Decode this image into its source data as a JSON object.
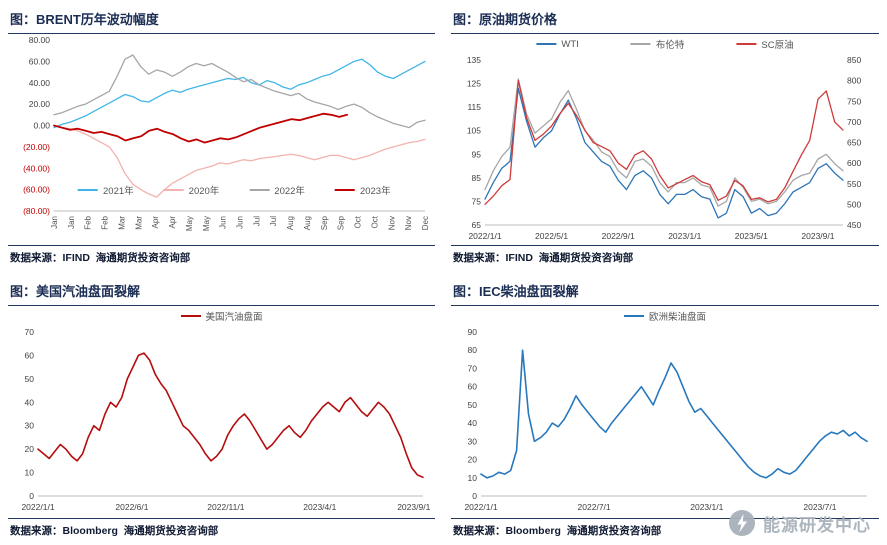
{
  "watermark": {
    "text": "能源研发中心",
    "icon": "lightning-icon",
    "color": "#a8b2ba"
  },
  "panels": [
    {
      "title": "图：BRENT历年波动幅度",
      "source": "数据来源：IFIND  海通期货投资咨询部"
    },
    {
      "title": "图：原油期货价格",
      "source": "数据来源：IFIND  海通期货投资咨询部"
    },
    {
      "title": "图：美国汽油盘面裂解",
      "source": "数据来源：Bloomberg  海通期货投资咨询部"
    },
    {
      "title": "图：IEC柴油盘面裂解",
      "source": "数据来源：Bloomberg  海通期货投资咨询部"
    }
  ],
  "chart_data": [
    {
      "type": "line",
      "title": "BRENT历年波动幅度",
      "xlabel": "",
      "ylabel": "",
      "grid": false,
      "legend_position": "bottom",
      "ylim": [
        -80,
        80
      ],
      "y_ticks": [
        {
          "v": 80,
          "label": "80.00"
        },
        {
          "v": 60,
          "label": "60.00"
        },
        {
          "v": 40,
          "label": "40.00"
        },
        {
          "v": 20,
          "label": "20.00"
        },
        {
          "v": 0,
          "label": "0.00"
        },
        {
          "v": -20,
          "label": "(20.00)"
        },
        {
          "v": -40,
          "label": "(40.00)"
        },
        {
          "v": -60,
          "label": "(60.00)"
        },
        {
          "v": -80,
          "label": "(80.00)"
        }
      ],
      "x_rotated": true,
      "x_ticks": [
        "Jan",
        "Jan",
        "Feb",
        "Feb",
        "Mar",
        "Mar",
        "Apr",
        "Apr",
        "May",
        "May",
        "Jun",
        "Jun",
        "Jul",
        "Jul",
        "Aug",
        "Aug",
        "Sep",
        "Sep",
        "Oct",
        "Oct",
        "Nov",
        "Nov",
        "Dec"
      ],
      "series": [
        {
          "name": "2021年",
          "color": "#41b6e6",
          "width": 1.3,
          "span": [
            0,
            1
          ],
          "values": [
            -2,
            1,
            3,
            6,
            9,
            13,
            17,
            21,
            25,
            29,
            27,
            23,
            22,
            26,
            30,
            33,
            31,
            34,
            36,
            38,
            40,
            42,
            44,
            43,
            45,
            40,
            38,
            42,
            40,
            36,
            34,
            38,
            40,
            43,
            46,
            48,
            52,
            56,
            60,
            62,
            57,
            50,
            46,
            44,
            48,
            52,
            56,
            60
          ]
        },
        {
          "name": "2020年",
          "color": "#f2b3ae",
          "width": 1.3,
          "span": [
            0,
            1
          ],
          "values": [
            0,
            -2,
            -3,
            -5,
            -8,
            -12,
            -16,
            -20,
            -30,
            -45,
            -55,
            -60,
            -64,
            -67,
            -60,
            -54,
            -50,
            -46,
            -42,
            -40,
            -38,
            -35,
            -36,
            -34,
            -32,
            -33,
            -31,
            -30,
            -29,
            -28,
            -27,
            -28,
            -30,
            -32,
            -30,
            -28,
            -28,
            -30,
            -32,
            -30,
            -28,
            -25,
            -22,
            -20,
            -18,
            -16,
            -15,
            -13
          ]
        },
        {
          "name": "2022年",
          "color": "#a6a6a6",
          "width": 1.3,
          "span": [
            0,
            1
          ],
          "values": [
            10,
            12,
            15,
            18,
            20,
            24,
            28,
            32,
            46,
            62,
            66,
            55,
            48,
            52,
            50,
            46,
            50,
            55,
            58,
            56,
            58,
            54,
            50,
            45,
            41,
            43,
            38,
            35,
            32,
            30,
            28,
            30,
            25,
            22,
            20,
            18,
            15,
            18,
            20,
            17,
            12,
            8,
            5,
            2,
            0,
            -2,
            3,
            5
          ]
        },
        {
          "name": "2023年",
          "color": "#c00000",
          "width": 1.8,
          "span": [
            0,
            0.79
          ],
          "values": [
            0,
            -2,
            -4,
            -3,
            -5,
            -7,
            -6,
            -8,
            -10,
            -14,
            -12,
            -10,
            -5,
            -3,
            -6,
            -8,
            -12,
            -15,
            -13,
            -16,
            -14,
            -12,
            -13,
            -11,
            -8,
            -5,
            -2,
            0,
            2,
            4,
            6,
            5,
            7,
            9,
            11,
            10,
            8,
            10
          ]
        }
      ]
    },
    {
      "type": "line",
      "title": "原油期货价格",
      "xlabel": "",
      "ylabel": "",
      "grid": false,
      "legend_position": "top",
      "ylim": [
        65,
        135
      ],
      "y_ticks": [
        135,
        125,
        115,
        105,
        95,
        85,
        75,
        65
      ],
      "ylim_right": [
        450,
        850
      ],
      "y_ticks_right": [
        850,
        800,
        750,
        700,
        650,
        600,
        550,
        500,
        450
      ],
      "x_ticks": [
        {
          "label": "2022/1/1",
          "pos": 0
        },
        {
          "label": "2022/5/1",
          "pos": 0.186
        },
        {
          "label": "2022/9/1",
          "pos": 0.372
        },
        {
          "label": "2023/1/1",
          "pos": 0.558
        },
        {
          "label": "2023/5/1",
          "pos": 0.744
        },
        {
          "label": "2023/9/1",
          "pos": 0.93
        }
      ],
      "series": [
        {
          "name": "WTI",
          "color": "#2e75b6",
          "width": 1.3,
          "span": [
            0,
            1
          ],
          "values": [
            76,
            83,
            89,
            92,
            123,
            109,
            98,
            102,
            105,
            112,
            118,
            110,
            100,
            96,
            92,
            90,
            84,
            80,
            86,
            88,
            85,
            78,
            74,
            78,
            78,
            80,
            77,
            76,
            68,
            70,
            80,
            77,
            70,
            72,
            69,
            70,
            74,
            79,
            81,
            83,
            89,
            91,
            87,
            84
          ]
        },
        {
          "name": "布伦特",
          "color": "#a6a6a6",
          "width": 1.3,
          "span": [
            0,
            1
          ],
          "values": [
            80,
            88,
            94,
            98,
            127,
            112,
            104,
            107,
            110,
            117,
            122,
            114,
            105,
            101,
            96,
            94,
            88,
            85,
            92,
            93,
            90,
            83,
            79,
            83,
            83,
            85,
            82,
            81,
            73,
            75,
            85,
            81,
            75,
            76,
            74,
            75,
            79,
            84,
            86,
            87,
            93,
            95,
            91,
            88
          ]
        },
        {
          "name": "SC原油",
          "color": "#cf3a3a",
          "width": 1.3,
          "span": [
            0,
            1
          ],
          "axis": "right",
          "values": [
            500,
            520,
            545,
            560,
            800,
            710,
            655,
            670,
            690,
            720,
            745,
            715,
            680,
            650,
            640,
            630,
            600,
            585,
            620,
            630,
            610,
            570,
            540,
            550,
            560,
            570,
            555,
            548,
            510,
            520,
            558,
            545,
            512,
            516,
            506,
            512,
            540,
            580,
            620,
            655,
            755,
            775,
            700,
            680
          ]
        }
      ]
    },
    {
      "type": "line",
      "title": "美国汽油盘面裂解",
      "xlabel": "",
      "ylabel": "",
      "grid": false,
      "legend_position": "top",
      "ylim": [
        0,
        70
      ],
      "y_ticks": [
        70,
        60,
        50,
        40,
        30,
        20,
        10,
        0
      ],
      "x_ticks": [
        {
          "label": "2022/1/1",
          "pos": 0
        },
        {
          "label": "2022/6/1",
          "pos": 0.244
        },
        {
          "label": "2022/11/1",
          "pos": 0.488
        },
        {
          "label": "2023/4/1",
          "pos": 0.732
        },
        {
          "label": "2023/9/1",
          "pos": 0.976
        }
      ],
      "series": [
        {
          "name": "美国汽油盘面",
          "color": "#b50d0d",
          "width": 1.6,
          "span": [
            0,
            1
          ],
          "values": [
            20,
            18,
            16,
            19,
            22,
            20,
            17,
            15,
            18,
            25,
            30,
            28,
            35,
            40,
            38,
            42,
            50,
            55,
            60,
            61,
            58,
            52,
            48,
            45,
            40,
            35,
            30,
            28,
            25,
            22,
            18,
            15,
            17,
            20,
            26,
            30,
            33,
            35,
            32,
            28,
            24,
            20,
            22,
            25,
            28,
            30,
            27,
            25,
            28,
            32,
            35,
            38,
            40,
            38,
            36,
            40,
            42,
            39,
            36,
            34,
            37,
            40,
            38,
            35,
            30,
            25,
            18,
            12,
            9,
            8
          ]
        }
      ]
    },
    {
      "type": "line",
      "title": "IEC柴油盘面裂解",
      "xlabel": "",
      "ylabel": "",
      "grid": false,
      "legend_position": "top",
      "ylim": [
        0,
        90
      ],
      "y_ticks": [
        90,
        80,
        70,
        60,
        50,
        40,
        30,
        20,
        10,
        0
      ],
      "x_ticks": [
        {
          "label": "2022/1/1",
          "pos": 0
        },
        {
          "label": "2022/7/1",
          "pos": 0.293
        },
        {
          "label": "2023/1/1",
          "pos": 0.585
        },
        {
          "label": "2023/7/1",
          "pos": 0.878
        }
      ],
      "series": [
        {
          "name": "欧洲柴油盘面",
          "color": "#2878bd",
          "width": 1.6,
          "span": [
            0,
            1
          ],
          "values": [
            12,
            10,
            11,
            13,
            12,
            14,
            25,
            80,
            45,
            30,
            32,
            35,
            40,
            38,
            42,
            48,
            55,
            50,
            46,
            42,
            38,
            35,
            40,
            44,
            48,
            52,
            56,
            60,
            55,
            50,
            58,
            65,
            73,
            68,
            60,
            52,
            46,
            48,
            44,
            40,
            36,
            32,
            28,
            24,
            20,
            16,
            13,
            11,
            10,
            12,
            15,
            13,
            12,
            14,
            18,
            22,
            26,
            30,
            33,
            35,
            34,
            36,
            33,
            35,
            32,
            30
          ]
        }
      ]
    }
  ]
}
